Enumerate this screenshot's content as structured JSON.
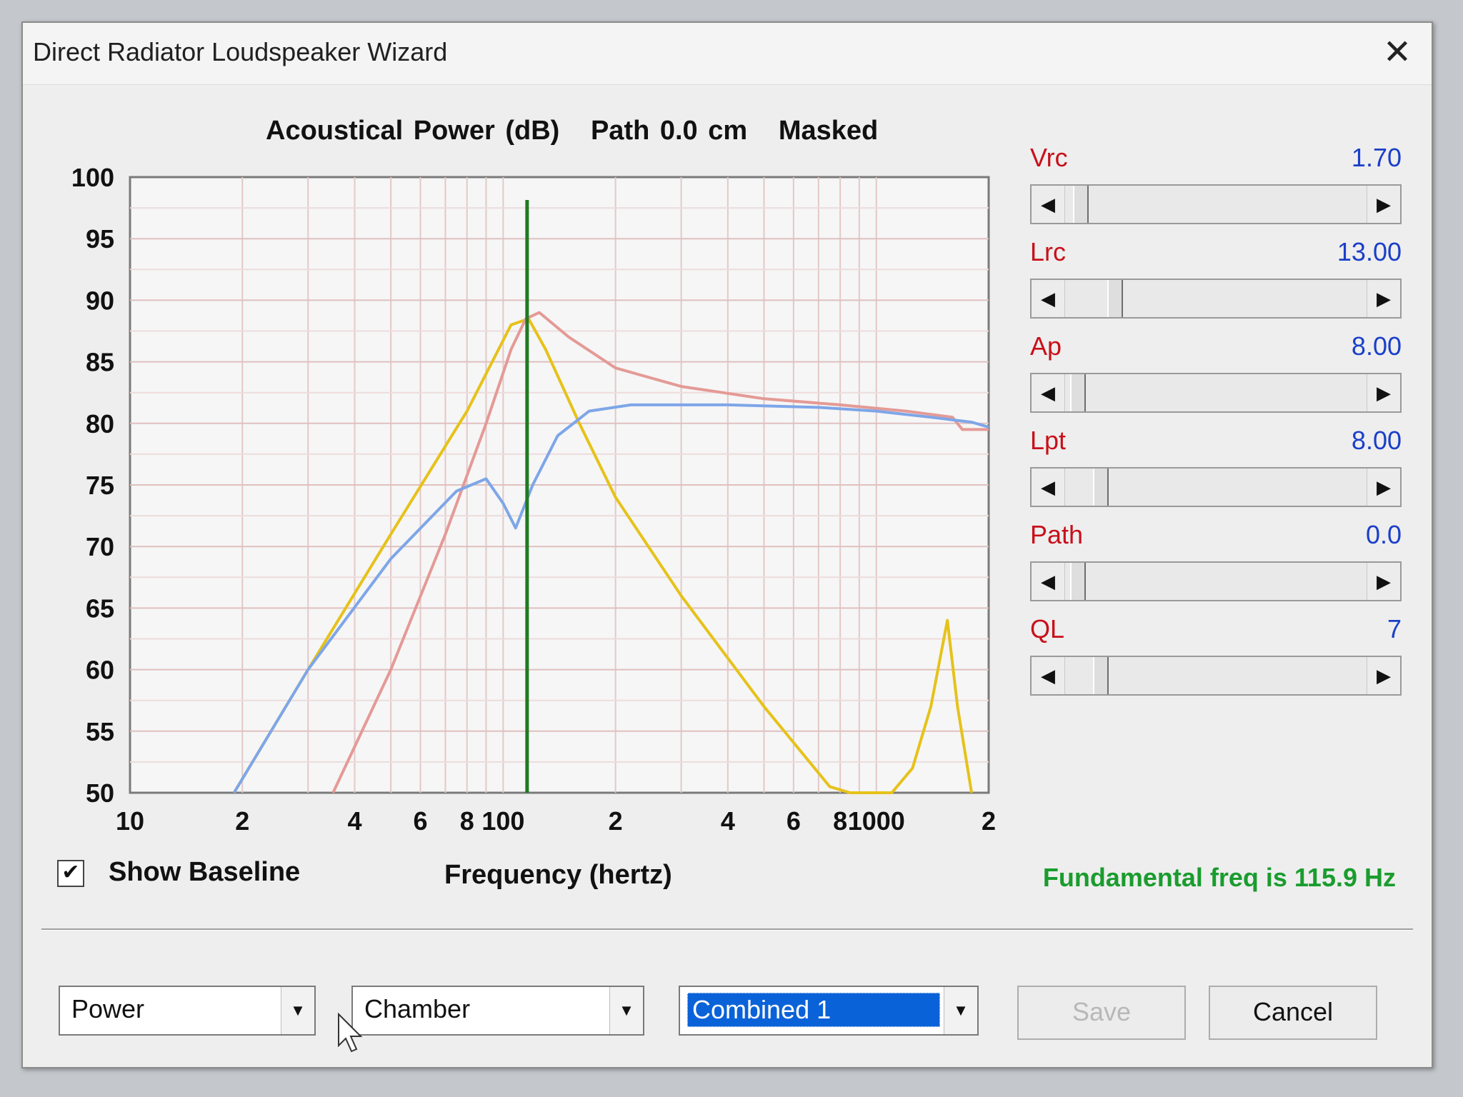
{
  "window": {
    "title": "Direct Radiator Loudspeaker Wizard",
    "close_icon": "close-icon"
  },
  "chart_title": "Acoustical Power (dB)   Path 0.0 cm   Masked",
  "sliders": [
    {
      "label": "Vrc",
      "value": "1.70",
      "position": 0.03
    },
    {
      "label": "Lrc",
      "value": "13.00",
      "position": 0.15
    },
    {
      "label": "Ap",
      "value": "8.00",
      "position": 0.02
    },
    {
      "label": "Lpt",
      "value": "8.00",
      "position": 0.1
    },
    {
      "label": "Path",
      "value": "0.0",
      "position": 0.02
    },
    {
      "label": "QL",
      "value": "7",
      "position": 0.1
    }
  ],
  "show_baseline": {
    "label": "Show Baseline",
    "checked": true,
    "check_glyph": "✔"
  },
  "frequency_label": "Frequency (hertz)",
  "fundamental_text": "Fundamental freq is 115.9 Hz",
  "combos": [
    {
      "value": "Power"
    },
    {
      "value": "Chamber"
    },
    {
      "value": "Combined 1"
    }
  ],
  "buttons": {
    "save": "Save",
    "cancel": "Cancel"
  },
  "chart_data": {
    "type": "line",
    "title": "Acoustical Power (dB)   Path 0.0 cm   Masked",
    "xlabel": "Frequency (hertz)",
    "ylabel": "",
    "x_scale": "log",
    "xlim": [
      10,
      2000
    ],
    "ylim": [
      50,
      100
    ],
    "y_ticks": [
      100,
      95,
      90,
      85,
      80,
      75,
      70,
      65,
      60,
      55,
      50
    ],
    "x_ticks": [
      {
        "value": 10,
        "label": "10"
      },
      {
        "value": 20,
        "label": "2"
      },
      {
        "value": 40,
        "label": "4"
      },
      {
        "value": 60,
        "label": "6"
      },
      {
        "value": 80,
        "label": "8"
      },
      {
        "value": 100,
        "label": "100"
      },
      {
        "value": 200,
        "label": "2"
      },
      {
        "value": 400,
        "label": "4"
      },
      {
        "value": 600,
        "label": "6"
      },
      {
        "value": 800,
        "label": "8"
      },
      {
        "value": 1000,
        "label": "1000"
      },
      {
        "value": 2000,
        "label": "2"
      }
    ],
    "grid": true,
    "marker_x": 115.9,
    "marker_color": "#1f7a22",
    "series": [
      {
        "color": "#e6c21a",
        "points": [
          [
            19,
            50
          ],
          [
            30,
            60
          ],
          [
            50,
            71
          ],
          [
            80,
            81
          ],
          [
            105,
            88
          ],
          [
            117,
            88.5
          ],
          [
            130,
            86
          ],
          [
            160,
            80
          ],
          [
            200,
            74
          ],
          [
            300,
            66
          ],
          [
            500,
            57
          ],
          [
            750,
            50.5
          ],
          [
            850,
            50
          ],
          [
            1100,
            50
          ],
          [
            1250,
            52
          ],
          [
            1400,
            57
          ],
          [
            1550,
            64
          ],
          [
            1650,
            57
          ],
          [
            1800,
            50
          ]
        ]
      },
      {
        "color": "#e49a96",
        "points": [
          [
            35,
            50
          ],
          [
            50,
            60
          ],
          [
            70,
            71
          ],
          [
            90,
            80
          ],
          [
            105,
            86
          ],
          [
            115,
            88.5
          ],
          [
            125,
            89
          ],
          [
            150,
            87
          ],
          [
            200,
            84.5
          ],
          [
            300,
            83
          ],
          [
            500,
            82
          ],
          [
            800,
            81.5
          ],
          [
            1200,
            81
          ],
          [
            1600,
            80.5
          ],
          [
            1700,
            79.5
          ],
          [
            2000,
            79.5
          ]
        ]
      },
      {
        "color": "#7ea6e8",
        "points": [
          [
            19,
            50
          ],
          [
            30,
            60
          ],
          [
            50,
            69
          ],
          [
            75,
            74.5
          ],
          [
            90,
            75.5
          ],
          [
            100,
            73.5
          ],
          [
            108,
            71.5
          ],
          [
            120,
            75
          ],
          [
            140,
            79
          ],
          [
            170,
            81
          ],
          [
            220,
            81.5
          ],
          [
            400,
            81.5
          ],
          [
            700,
            81.3
          ],
          [
            1000,
            81
          ],
          [
            1400,
            80.5
          ],
          [
            1800,
            80.1
          ],
          [
            2000,
            79.7
          ]
        ]
      }
    ]
  }
}
